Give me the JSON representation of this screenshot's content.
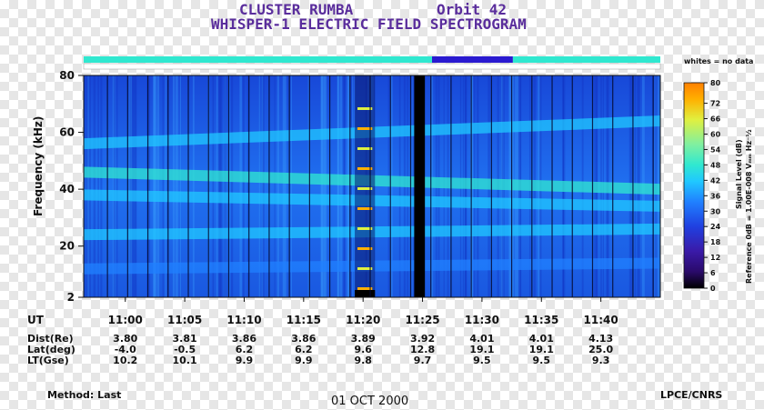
{
  "title": {
    "line1_left": "CLUSTER RUMBA",
    "line1_right": "Orbit  42",
    "line2": "WHISPER-1 ELECTRIC FIELD SPECTROGRAM"
  },
  "data_bar_note": "whites = no data",
  "footer": {
    "method": "Method: Last",
    "date": "01 OCT 2000",
    "credit": "LPCE/CNRS"
  },
  "ephemeris": {
    "ut_label": "UT",
    "rows": [
      {
        "label": "Dist(Re)",
        "values": [
          "3.80",
          "3.81",
          "3.86",
          "3.86",
          "3.89",
          "3.92",
          "4.01",
          "4.01",
          "4.13"
        ]
      },
      {
        "label": "Lat(deg)",
        "values": [
          "-4.0",
          "-0.5",
          "6.2",
          "6.2",
          "9.6",
          "12.8",
          "19.1",
          "19.1",
          "25.0"
        ]
      },
      {
        "label": "LT(Gse)",
        "values": [
          "10.2",
          "10.1",
          "9.9",
          "9.9",
          "9.8",
          "9.7",
          "9.5",
          "9.5",
          "9.3"
        ]
      }
    ]
  },
  "chart_data": {
    "type": "heatmap",
    "title": "WHISPER-1 ELECTRIC FIELD SPECTROGRAM",
    "ylabel": "Frequency (kHz)",
    "ylim": [
      2,
      80
    ],
    "y_ticks": [
      2,
      20,
      40,
      60,
      80
    ],
    "x_ticks": [
      "11:00",
      "11:05",
      "11:10",
      "11:15",
      "11:20",
      "11:25",
      "11:30",
      "11:35",
      "11:40"
    ],
    "x_tick_minutes": [
      60,
      65,
      70,
      75,
      80,
      85,
      90,
      95,
      100
    ],
    "x_range_minutes": [
      56.5,
      105
    ],
    "colorbar": {
      "label": "Signal Level (dB)",
      "reference": "Reference 0dB = 1.00E-008  Vₘₘ Hz⁻½",
      "ticks": [
        0,
        6,
        12,
        18,
        24,
        30,
        36,
        42,
        48,
        54,
        60,
        66,
        72,
        80
      ],
      "range": [
        0,
        80
      ],
      "colors": [
        "#000000",
        "#2a0a6a",
        "#3a1aa8",
        "#2040e0",
        "#2080ff",
        "#20c8ff",
        "#30e8d0",
        "#80f0a0",
        "#e0f040",
        "#ffb000",
        "#ff8000"
      ]
    },
    "bands": [
      {
        "name": "band-high",
        "start_khz": 56,
        "end_khz": 64,
        "level_db": 40
      },
      {
        "name": "band-upper",
        "start_khz": 46,
        "end_khz": 40,
        "level_db": 44
      },
      {
        "name": "band-mid",
        "start_khz": 38,
        "end_khz": 34,
        "level_db": 38
      },
      {
        "name": "band-low",
        "start_khz": 24,
        "end_khz": 26,
        "level_db": 36
      },
      {
        "name": "band-base",
        "start_khz": 12,
        "end_khz": 14,
        "level_db": 30
      }
    ],
    "data_gap_minutes": [
      84.3,
      85.2
    ],
    "burst_minutes": [
      79.3,
      81.0
    ],
    "data_bar_segments": [
      {
        "from": 56.5,
        "to": 85.8,
        "color": "#30e8d0"
      },
      {
        "from": 85.8,
        "to": 92.6,
        "color": "#2a1ad0"
      },
      {
        "from": 92.6,
        "to": 105,
        "color": "#30e8d0"
      }
    ]
  }
}
